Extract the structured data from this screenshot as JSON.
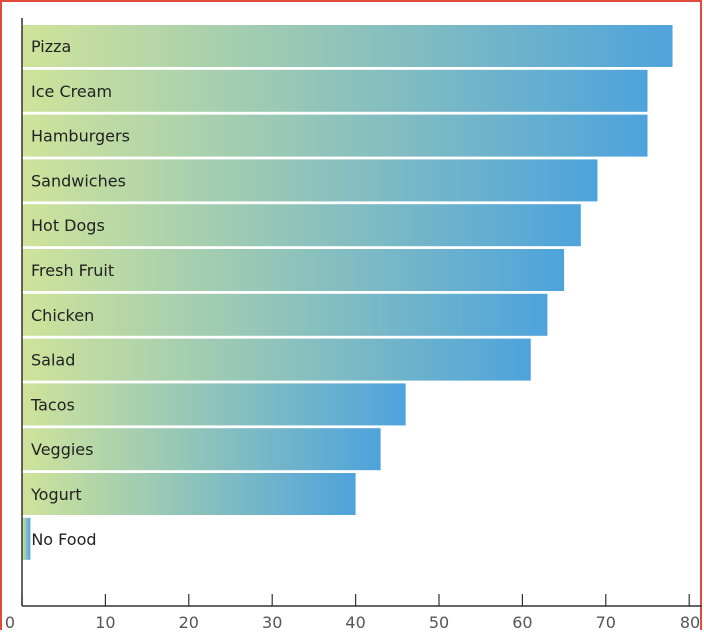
{
  "chart_data": {
    "type": "bar",
    "orientation": "horizontal",
    "categories": [
      "Pizza",
      "Ice Cream",
      "Hamburgers",
      "Sandwiches",
      "Hot Dogs",
      "Fresh Fruit",
      "Chicken",
      "Salad",
      "Tacos",
      "Veggies",
      "Yogurt",
      "No Food"
    ],
    "values": [
      78,
      75,
      75,
      69,
      67,
      65,
      63,
      61,
      46,
      43,
      40,
      1
    ],
    "xlim": [
      0,
      80
    ],
    "xticks": [
      0,
      10,
      20,
      30,
      40,
      50,
      60,
      70,
      80
    ],
    "title": "",
    "xlabel": "",
    "ylabel": "",
    "grid": false,
    "colors": {
      "bar_start": "#cfe39a",
      "bar_end": "#4ea3dc",
      "frame": "#e04b3c",
      "axis": "#333333",
      "text": "#222222",
      "tick_text": "#555555"
    }
  }
}
